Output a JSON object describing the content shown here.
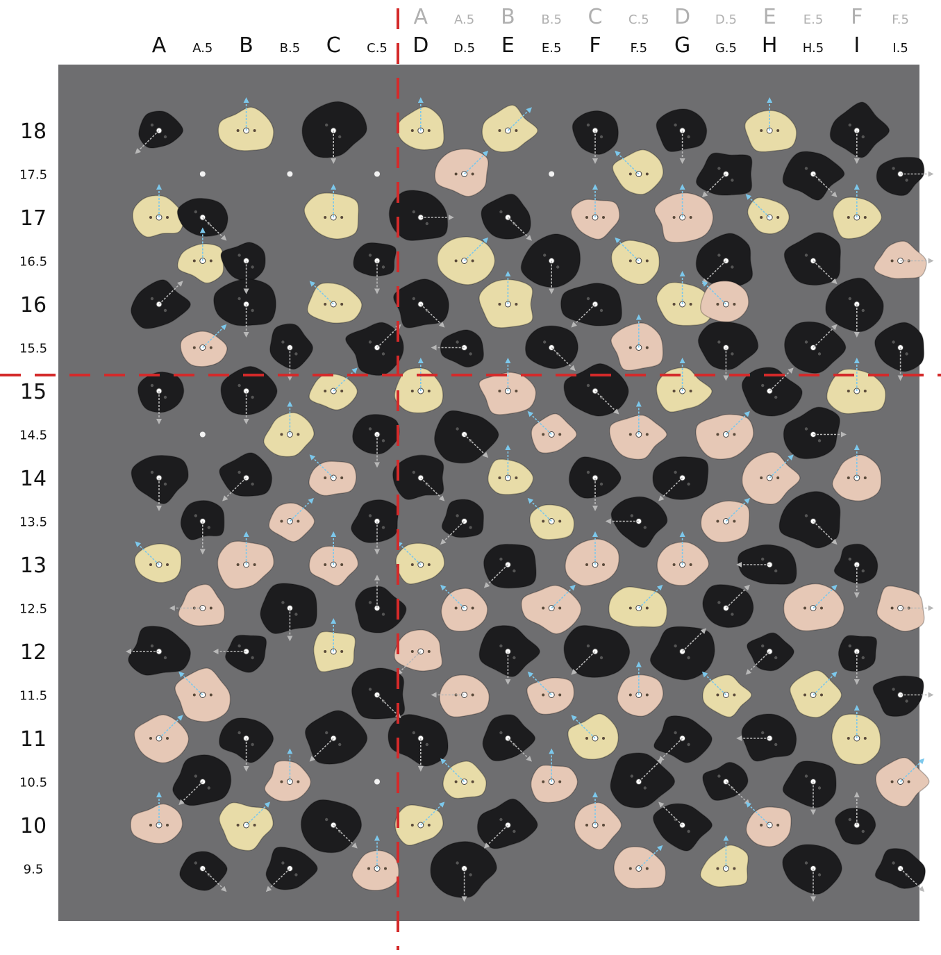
{
  "columns_top": [
    "A",
    "A.5",
    "B",
    "B.5",
    "C",
    "C.5",
    "D",
    "D.5",
    "E",
    "E.5",
    "F",
    "F.5"
  ],
  "columns_main": [
    "A",
    "A.5",
    "B",
    "B.5",
    "C",
    "C.5",
    "D",
    "D.5",
    "E",
    "E.5",
    "F",
    "F.5",
    "G",
    "G.5",
    "H",
    "H.5",
    "I",
    "I.5"
  ],
  "rows": [
    "18",
    "17.5",
    "17",
    "16.5",
    "16",
    "15.5",
    "15",
    "14.5",
    "14",
    "13.5",
    "13",
    "12.5",
    "12",
    "11.5",
    "11",
    "10.5",
    "10",
    "9.5"
  ],
  "colors": {
    "wall": "#6e6e70",
    "hold_black": "#1c1c1e",
    "hold_cream": "#e8dca8",
    "hold_pink": "#e6c8b6",
    "arrow_blue": "#7cc8ec",
    "arrow_grey": "#b8b8b8",
    "divider_red": "#d42a2a",
    "label_dark": "#111111",
    "label_light": "#b0b0b0"
  },
  "holds": [
    [
      "black",
      "A",
      "18",
      "dl"
    ],
    [
      "cream",
      "B",
      "18",
      "up"
    ],
    [
      "black",
      "C",
      "18",
      "dn"
    ],
    [
      "cream",
      "D",
      "18",
      "up"
    ],
    [
      "cream",
      "E",
      "18",
      "ur"
    ],
    [
      "black",
      "F",
      "18",
      "dn"
    ],
    [
      "black",
      "G",
      "18",
      "dn"
    ],
    [
      "cream",
      "H",
      "18",
      "up"
    ],
    [
      "black",
      "I",
      "18",
      "dn"
    ],
    [
      "pink",
      "D.5",
      "17.5",
      "ur"
    ],
    [
      "cream",
      "F.5",
      "17.5",
      "ul"
    ],
    [
      "black",
      "G.5",
      "17.5",
      "dl"
    ],
    [
      "black",
      "H.5",
      "17.5",
      "dr"
    ],
    [
      "black",
      "I.5",
      "17.5",
      "r"
    ],
    [
      "cream",
      "A",
      "17",
      "up"
    ],
    [
      "black",
      "A.5",
      "17",
      "dr"
    ],
    [
      "cream",
      "C",
      "17",
      "up"
    ],
    [
      "black",
      "D",
      "17",
      "r"
    ],
    [
      "black",
      "E",
      "17",
      "dr"
    ],
    [
      "pink",
      "F",
      "17",
      "up"
    ],
    [
      "pink",
      "G",
      "17",
      "up"
    ],
    [
      "cream",
      "H",
      "17",
      "ul"
    ],
    [
      "cream",
      "I",
      "17",
      "up"
    ],
    [
      "cream",
      "A.5",
      "16.5",
      "up"
    ],
    [
      "black",
      "B",
      "16.5",
      "dn"
    ],
    [
      "black",
      "C.5",
      "16.5",
      "dn"
    ],
    [
      "cream",
      "D.5",
      "16.5",
      "ur"
    ],
    [
      "black",
      "E.5",
      "16.5",
      "dn"
    ],
    [
      "cream",
      "F.5",
      "16.5",
      "ul"
    ],
    [
      "black",
      "G.5",
      "16.5",
      "dl"
    ],
    [
      "black",
      "H.5",
      "16.5",
      "dr"
    ],
    [
      "pink",
      "I.5",
      "16.5",
      "r"
    ],
    [
      "black",
      "A",
      "16",
      "ur"
    ],
    [
      "black",
      "B",
      "16",
      "dn"
    ],
    [
      "cream",
      "C",
      "16",
      "ul"
    ],
    [
      "black",
      "D",
      "16",
      "dr"
    ],
    [
      "cream",
      "E",
      "16",
      "up"
    ],
    [
      "black",
      "F",
      "16",
      "dl"
    ],
    [
      "cream",
      "G",
      "16",
      "up"
    ],
    [
      "pink",
      "G.5",
      "16",
      "ul"
    ],
    [
      "black",
      "I",
      "16",
      "dn"
    ],
    [
      "pink",
      "A.5",
      "15.5",
      "ur"
    ],
    [
      "black",
      "B.5",
      "15.5",
      "dn"
    ],
    [
      "black",
      "C.5",
      "15.5",
      "ur"
    ],
    [
      "black",
      "D.5",
      "15.5",
      "l"
    ],
    [
      "black",
      "E.5",
      "15.5",
      "dr"
    ],
    [
      "pink",
      "F.5",
      "15.5",
      "up"
    ],
    [
      "black",
      "G.5",
      "15.5",
      "dn"
    ],
    [
      "black",
      "H.5",
      "15.5",
      "ur"
    ],
    [
      "black",
      "I.5",
      "15.5",
      "dn"
    ],
    [
      "black",
      "A",
      "15",
      "dn"
    ],
    [
      "black",
      "B",
      "15",
      "dn"
    ],
    [
      "cream",
      "C",
      "15",
      "ur"
    ],
    [
      "cream",
      "D",
      "15",
      "up"
    ],
    [
      "pink",
      "E",
      "15",
      "up"
    ],
    [
      "black",
      "F",
      "15",
      "dr"
    ],
    [
      "cream",
      "G",
      "15",
      "up"
    ],
    [
      "black",
      "H",
      "15",
      "ur"
    ],
    [
      "cream",
      "I",
      "15",
      "up"
    ],
    [
      "cream",
      "B.5",
      "14.5",
      "up"
    ],
    [
      "black",
      "C.5",
      "14.5",
      "dn"
    ],
    [
      "black",
      "D.5",
      "14.5",
      "dr"
    ],
    [
      "pink",
      "E.5",
      "14.5",
      "ul"
    ],
    [
      "pink",
      "F.5",
      "14.5",
      "up"
    ],
    [
      "pink",
      "G.5",
      "14.5",
      "ur"
    ],
    [
      "black",
      "H.5",
      "14.5",
      "r"
    ],
    [
      "black",
      "A",
      "14",
      "dn"
    ],
    [
      "black",
      "B",
      "14",
      "dl"
    ],
    [
      "pink",
      "C",
      "14",
      "ul"
    ],
    [
      "black",
      "D",
      "14",
      "dr"
    ],
    [
      "cream",
      "E",
      "14",
      "up"
    ],
    [
      "black",
      "F",
      "14",
      "dn"
    ],
    [
      "black",
      "G",
      "14",
      "dl"
    ],
    [
      "pink",
      "H",
      "14",
      "ur"
    ],
    [
      "pink",
      "I",
      "14",
      "up"
    ],
    [
      "black",
      "A.5",
      "13.5",
      "dn"
    ],
    [
      "pink",
      "B.5",
      "13.5",
      "ur"
    ],
    [
      "black",
      "C.5",
      "13.5",
      "dn"
    ],
    [
      "black",
      "D.5",
      "13.5",
      "dl"
    ],
    [
      "cream",
      "E.5",
      "13.5",
      "ul"
    ],
    [
      "black",
      "F.5",
      "13.5",
      "l"
    ],
    [
      "pink",
      "G.5",
      "13.5",
      "ur"
    ],
    [
      "black",
      "H.5",
      "13.5",
      "dr"
    ],
    [
      "cream",
      "A",
      "13",
      "ul"
    ],
    [
      "pink",
      "B",
      "13",
      "up"
    ],
    [
      "pink",
      "C",
      "13",
      "up"
    ],
    [
      "cream",
      "D",
      "13",
      "ul"
    ],
    [
      "black",
      "E",
      "13",
      "dl"
    ],
    [
      "pink",
      "F",
      "13",
      "up"
    ],
    [
      "pink",
      "G",
      "13",
      "up"
    ],
    [
      "black",
      "H",
      "13",
      "l"
    ],
    [
      "black",
      "I",
      "13",
      "dn"
    ],
    [
      "pink",
      "A.5",
      "12.5",
      "l"
    ],
    [
      "black",
      "B.5",
      "12.5",
      "dn"
    ],
    [
      "black",
      "C.5",
      "12.5",
      "up"
    ],
    [
      "pink",
      "D.5",
      "12.5",
      "ul"
    ],
    [
      "pink",
      "E.5",
      "12.5",
      "ur"
    ],
    [
      "cream",
      "F.5",
      "12.5",
      "ur"
    ],
    [
      "black",
      "G.5",
      "12.5",
      "ur"
    ],
    [
      "pink",
      "H.5",
      "12.5",
      "ur"
    ],
    [
      "pink",
      "I.5",
      "12.5",
      "r"
    ],
    [
      "black",
      "A",
      "12",
      "l"
    ],
    [
      "black",
      "B",
      "12",
      "l"
    ],
    [
      "cream",
      "C",
      "12",
      "up"
    ],
    [
      "pink",
      "D",
      "12",
      "dl"
    ],
    [
      "black",
      "E",
      "12",
      "dn"
    ],
    [
      "black",
      "F",
      "12",
      "dl"
    ],
    [
      "black",
      "G",
      "12",
      "ur"
    ],
    [
      "black",
      "H",
      "12",
      "dl"
    ],
    [
      "black",
      "I",
      "12",
      "dn"
    ],
    [
      "pink",
      "A.5",
      "11.5",
      "ul"
    ],
    [
      "black",
      "C.5",
      "11.5",
      "dr"
    ],
    [
      "pink",
      "D.5",
      "11.5",
      "l"
    ],
    [
      "pink",
      "E.5",
      "11.5",
      "ul"
    ],
    [
      "pink",
      "F.5",
      "11.5",
      "up"
    ],
    [
      "cream",
      "G.5",
      "11.5",
      "ul"
    ],
    [
      "cream",
      "H.5",
      "11.5",
      "ur"
    ],
    [
      "black",
      "I.5",
      "11.5",
      "r"
    ],
    [
      "pink",
      "A",
      "11",
      "ur"
    ],
    [
      "black",
      "B",
      "11",
      "dn"
    ],
    [
      "black",
      "C",
      "11",
      "dl"
    ],
    [
      "black",
      "D",
      "11",
      "dn"
    ],
    [
      "black",
      "E",
      "11",
      "dr"
    ],
    [
      "cream",
      "F",
      "11",
      "ul"
    ],
    [
      "black",
      "G",
      "11",
      "dl"
    ],
    [
      "black",
      "H",
      "11",
      "l"
    ],
    [
      "cream",
      "I",
      "11",
      "up"
    ],
    [
      "black",
      "A.5",
      "10.5",
      "dl"
    ],
    [
      "pink",
      "B.5",
      "10.5",
      "up"
    ],
    [
      "cream",
      "D.5",
      "10.5",
      "ul"
    ],
    [
      "pink",
      "E.5",
      "10.5",
      "up"
    ],
    [
      "black",
      "F.5",
      "10.5",
      "ur"
    ],
    [
      "black",
      "G.5",
      "10.5",
      "dr"
    ],
    [
      "black",
      "H.5",
      "10.5",
      "dn"
    ],
    [
      "pink",
      "I.5",
      "10.5",
      "ur"
    ],
    [
      "pink",
      "A",
      "10",
      "up"
    ],
    [
      "cream",
      "B",
      "10",
      "ur"
    ],
    [
      "black",
      "C",
      "10",
      "dr"
    ],
    [
      "cream",
      "D",
      "10",
      "ur"
    ],
    [
      "black",
      "E",
      "10",
      "dl"
    ],
    [
      "pink",
      "F",
      "10",
      "up"
    ],
    [
      "black",
      "G",
      "10",
      "ul"
    ],
    [
      "pink",
      "H",
      "10",
      "ul"
    ],
    [
      "black",
      "I",
      "10",
      "up"
    ],
    [
      "black",
      "A.5",
      "9.5",
      "dr"
    ],
    [
      "black",
      "B.5",
      "9.5",
      "dl"
    ],
    [
      "pink",
      "C.5",
      "9.5",
      "up"
    ],
    [
      "black",
      "D.5",
      "9.5",
      "dn"
    ],
    [
      "pink",
      "F.5",
      "9.5",
      "ur"
    ],
    [
      "cream",
      "G.5",
      "9.5",
      "up"
    ],
    [
      "black",
      "H.5",
      "9.5",
      "dn"
    ],
    [
      "black",
      "I.5",
      "9.5",
      "dr"
    ]
  ],
  "t_nuts": [
    [
      "A.5",
      "17.5"
    ],
    [
      "B.5",
      "17.5"
    ],
    [
      "C.5",
      "17.5"
    ],
    [
      "E.5",
      "17.5"
    ],
    [
      "A.5",
      "14.5"
    ],
    [
      "C.5",
      "10.5"
    ]
  ]
}
